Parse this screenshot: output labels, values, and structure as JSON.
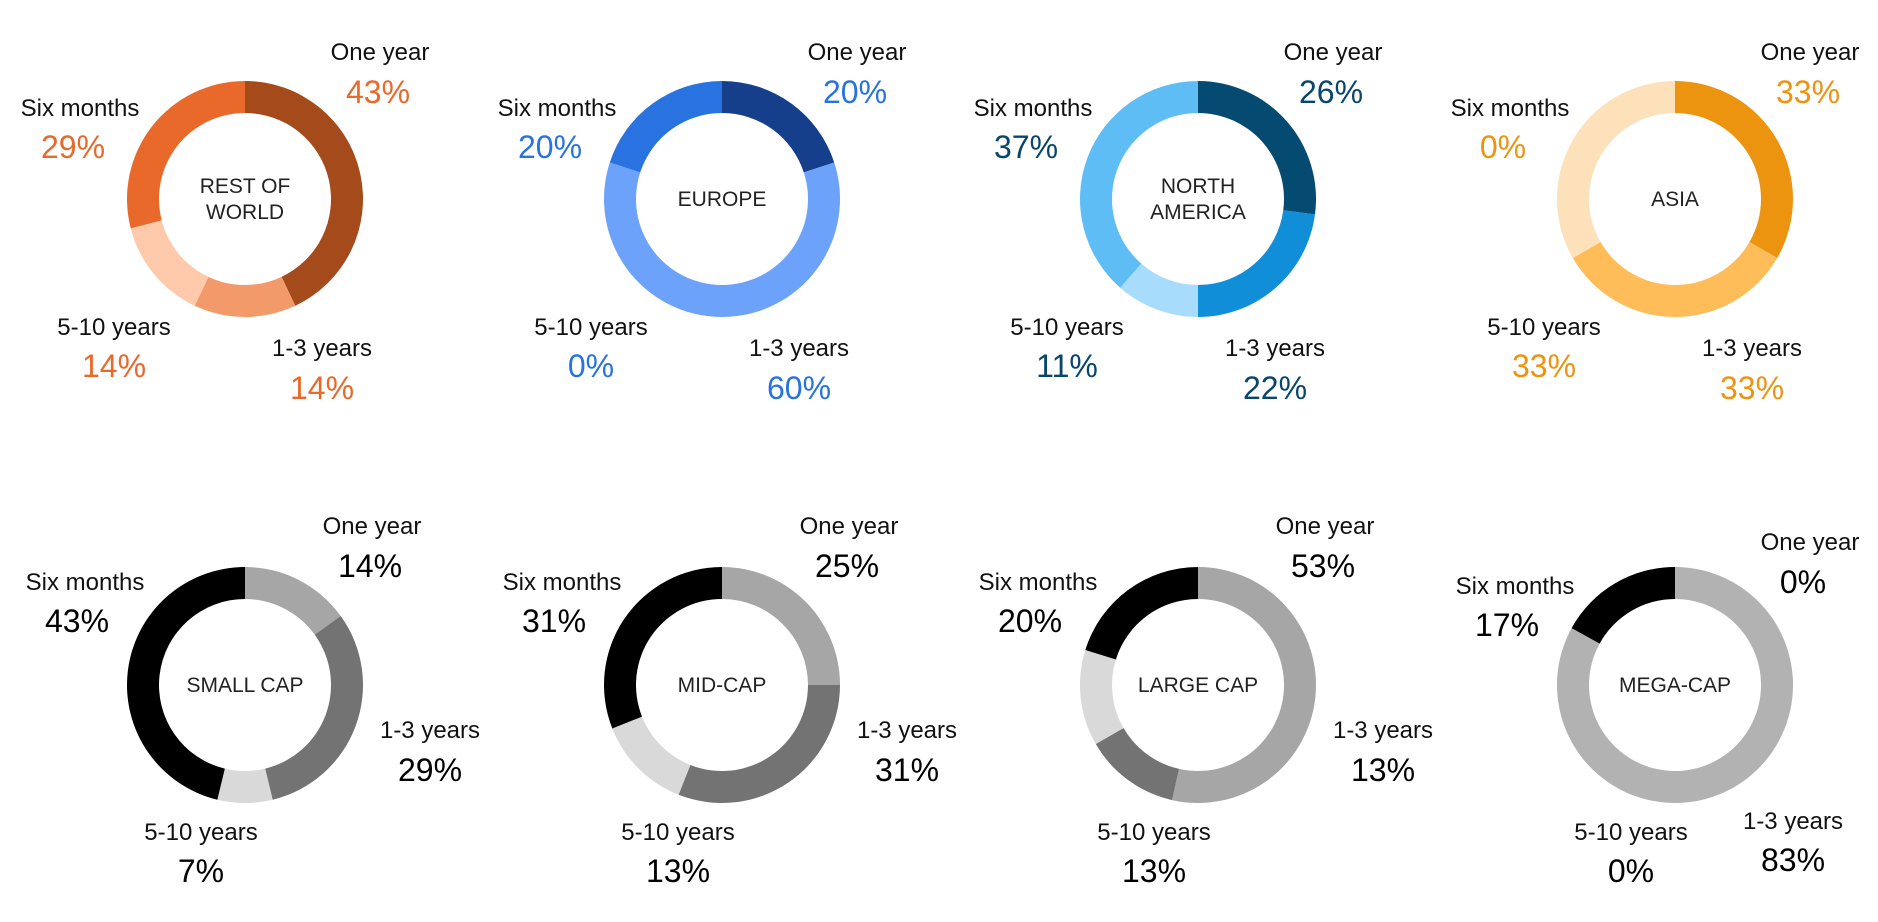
{
  "chart_data": [
    {
      "type": "pie",
      "title": "",
      "center_label": [
        "REST OF",
        "WORLD"
      ],
      "value_color": "#e9692a",
      "slices": [
        {
          "label": "One year",
          "value": 43,
          "display": "43%",
          "color": "#a44a1b"
        },
        {
          "label": "1-3 years",
          "value": 14,
          "display": "14%",
          "color": "#f39a6a"
        },
        {
          "label": "5-10 years",
          "value": 14,
          "display": "14%",
          "color": "#ffc9ab"
        },
        {
          "label": "Six months",
          "value": 29,
          "display": "29%",
          "color": "#e9692a"
        }
      ]
    },
    {
      "type": "pie",
      "title": "",
      "center_label": [
        "EUROPE"
      ],
      "value_color": "#2873df",
      "slices": [
        {
          "label": "One year",
          "value": 20,
          "display": "20%",
          "color": "#153f8b"
        },
        {
          "label": "1-3 years",
          "value": 60,
          "display": "60%",
          "color": "#6da2fb"
        },
        {
          "label": "5-10 years",
          "value": 0,
          "display": "0%",
          "color": "#a9c8ff"
        },
        {
          "label": "Six months",
          "value": 20,
          "display": "20%",
          "color": "#2873df"
        }
      ]
    },
    {
      "type": "pie",
      "title": "",
      "center_label": [
        "NORTH",
        "AMERICA"
      ],
      "value_color": "#08466b",
      "slices": [
        {
          "label": "One year",
          "value": 26,
          "display": "26%",
          "color": "#044a71"
        },
        {
          "label": "1-3 years",
          "value": 22,
          "display": "22%",
          "color": "#108ed8"
        },
        {
          "label": "5-10 years",
          "value": 11,
          "display": "11%",
          "color": "#a7dcfc"
        },
        {
          "label": "Six months",
          "value": 37,
          "display": "37%",
          "color": "#5fbdf5"
        }
      ]
    },
    {
      "type": "pie",
      "title": "",
      "center_label": [
        "ASIA"
      ],
      "value_color": "#ec9310",
      "slices": [
        {
          "label": "One year",
          "value": 33,
          "display": "33%",
          "color": "#ec9310"
        },
        {
          "label": "1-3 years",
          "value": 33,
          "display": "33%",
          "color": "#ffbd59"
        },
        {
          "label": "5-10 years",
          "value": 33,
          "display": "33%",
          "color": "#fce1bb"
        },
        {
          "label": "Six months",
          "value": 0,
          "display": "0%",
          "color": "#f9ce8b"
        }
      ]
    },
    {
      "type": "pie",
      "title": "",
      "center_label": [
        "SMALL CAP"
      ],
      "value_color": "#000000",
      "slices": [
        {
          "label": "One year",
          "value": 14,
          "display": "14%",
          "color": "#a6a6a6"
        },
        {
          "label": "1-3 years",
          "value": 29,
          "display": "29%",
          "color": "#737373"
        },
        {
          "label": "5-10 years",
          "value": 7,
          "display": "7%",
          "color": "#d9d9d9"
        },
        {
          "label": "Six months",
          "value": 43,
          "display": "43%",
          "color": "#000000"
        }
      ]
    },
    {
      "type": "pie",
      "title": "",
      "center_label": [
        "MID-CAP"
      ],
      "value_color": "#000000",
      "slices": [
        {
          "label": "One year",
          "value": 25,
          "display": "25%",
          "color": "#a6a6a6"
        },
        {
          "label": "1-3 years",
          "value": 31,
          "display": "31%",
          "color": "#737373"
        },
        {
          "label": "5-10 years",
          "value": 13,
          "display": "13%",
          "color": "#d9d9d9"
        },
        {
          "label": "Six months",
          "value": 31,
          "display": "31%",
          "color": "#000000"
        }
      ]
    },
    {
      "type": "pie",
      "title": "",
      "center_label": [
        "LARGE CAP"
      ],
      "value_color": "#000000",
      "slices": [
        {
          "label": "One year",
          "value": 53,
          "display": "53%",
          "color": "#a6a6a6"
        },
        {
          "label": "1-3 years",
          "value": 13,
          "display": "13%",
          "color": "#737373"
        },
        {
          "label": "5-10 years",
          "value": 13,
          "display": "13%",
          "color": "#d9d9d9"
        },
        {
          "label": "Six months",
          "value": 20,
          "display": "20%",
          "color": "#000000"
        }
      ]
    },
    {
      "type": "pie",
      "title": "",
      "center_label": [
        "MEGA-CAP"
      ],
      "value_color": "#000000",
      "slices": [
        {
          "label": "One year",
          "value": 0,
          "display": "0%",
          "color": "#a6a6a6"
        },
        {
          "label": "1-3 years",
          "value": 83,
          "display": "83%",
          "color": "#b2b2b2"
        },
        {
          "label": "5-10 years",
          "value": 0,
          "display": "0%",
          "color": "#d9d9d9"
        },
        {
          "label": "Six months",
          "value": 17,
          "display": "17%",
          "color": "#000000"
        }
      ]
    }
  ]
}
